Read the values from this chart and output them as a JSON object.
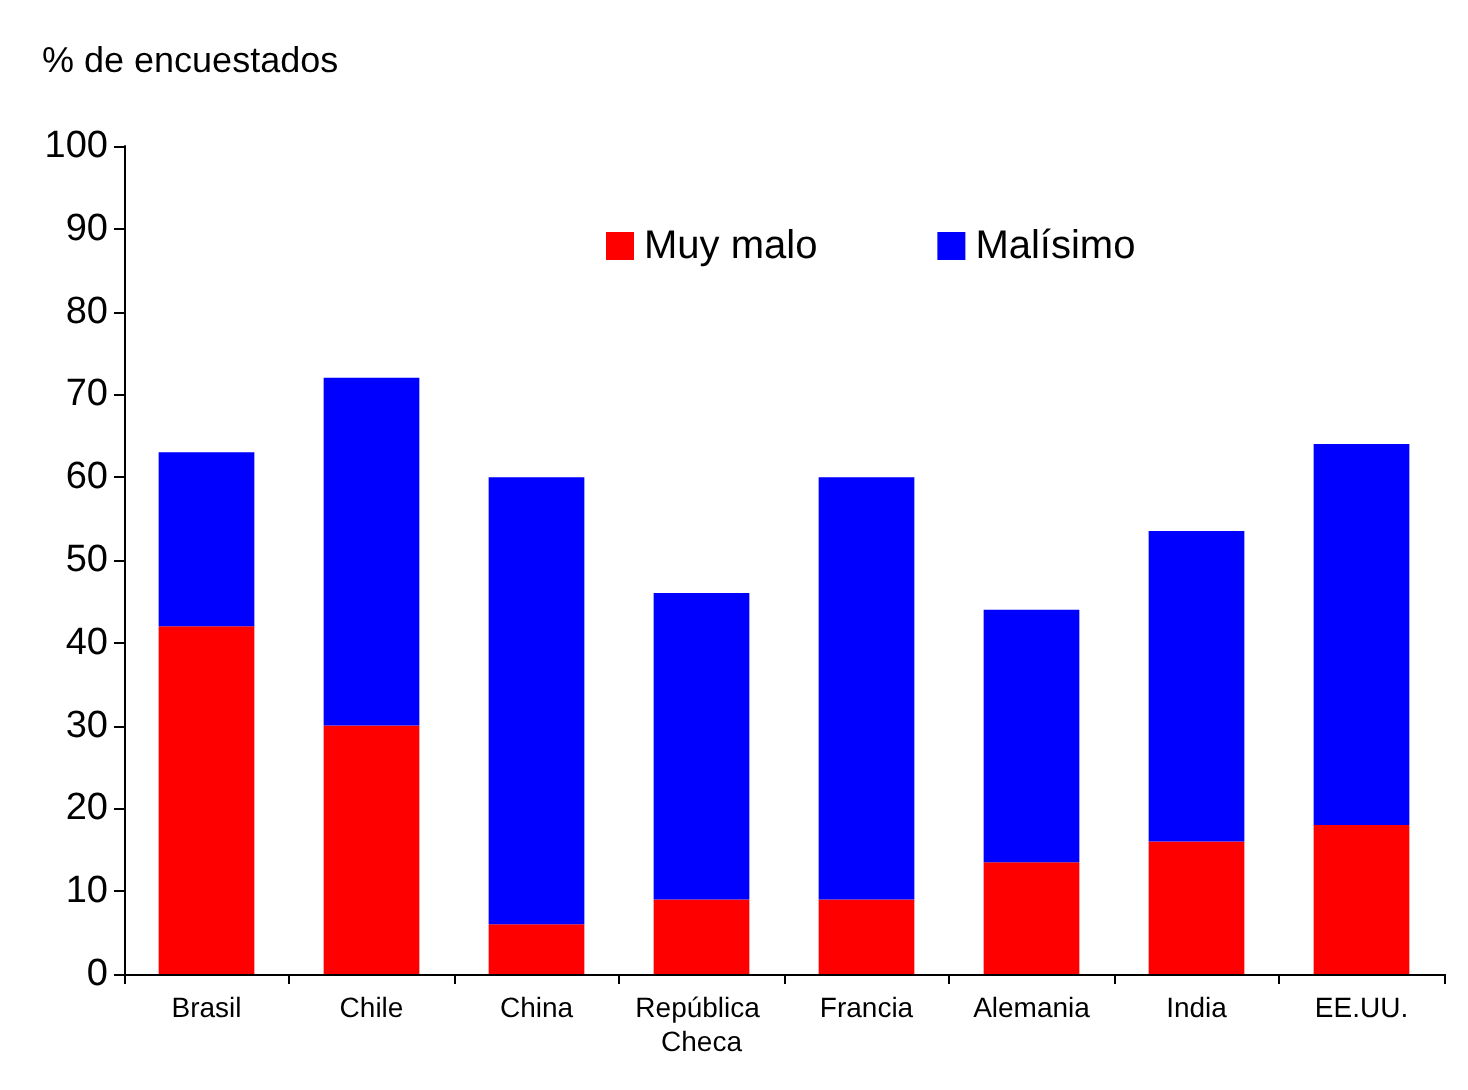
{
  "chart_data": {
    "type": "bar",
    "stacked": true,
    "ylabel": "% de encuestados",
    "categories": [
      "Brasil",
      "Chile",
      "China",
      "República Checa",
      "Francia",
      "Alemania",
      "India",
      "EE.UU."
    ],
    "series": [
      {
        "name": "Muy malo",
        "color": "#ff0000",
        "values": [
          42,
          30,
          6,
          9,
          9,
          13.5,
          16,
          18
        ]
      },
      {
        "name": "Malísimo",
        "color": "#0000ff",
        "values": [
          21,
          42,
          54,
          37,
          51,
          30.5,
          37.5,
          46
        ]
      }
    ],
    "ylim": [
      0,
      100
    ],
    "yticks": [
      0,
      10,
      20,
      30,
      40,
      50,
      60,
      70,
      80,
      90,
      100
    ],
    "grid": false,
    "legend": "top"
  }
}
